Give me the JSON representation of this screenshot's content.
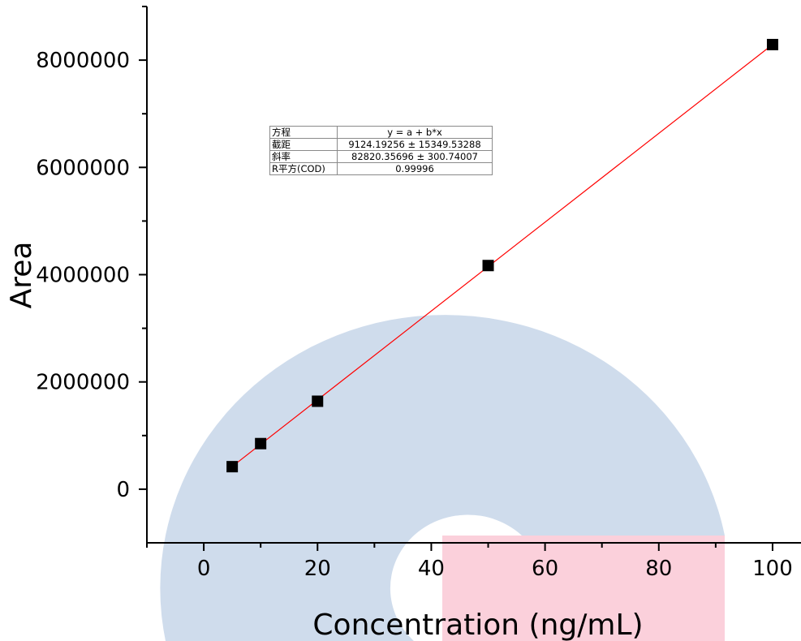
{
  "chart_data": {
    "type": "scatter",
    "xlabel": "Concentration (ng/mL)",
    "ylabel": "Area",
    "xlim": [
      -10,
      105
    ],
    "ylim": [
      -1000000,
      9000000
    ],
    "x_ticks": [
      0,
      20,
      40,
      60,
      80,
      100
    ],
    "y_ticks": [
      0,
      2000000,
      4000000,
      6000000,
      8000000
    ],
    "grid": false,
    "series": [
      {
        "marker": "square",
        "color": "#000000",
        "x": [
          5,
          10,
          20,
          50,
          100
        ],
        "y": [
          420000,
          850000,
          1640000,
          4170000,
          8290000
        ]
      }
    ],
    "fit_line": {
      "color": "#ff0000",
      "x_range": [
        5,
        100
      ],
      "intercept": 9124.19256,
      "slope": 82820.35696
    },
    "fit_table": [
      {
        "key": "方程",
        "value": "y = a + b*x"
      },
      {
        "key": "截距",
        "value": "9124.19256 ± 15349.53288"
      },
      {
        "key": "斜率",
        "value": "82820.35696 ± 300.74007"
      },
      {
        "key": "R平方(COD)",
        "value": "0.99996"
      }
    ]
  }
}
